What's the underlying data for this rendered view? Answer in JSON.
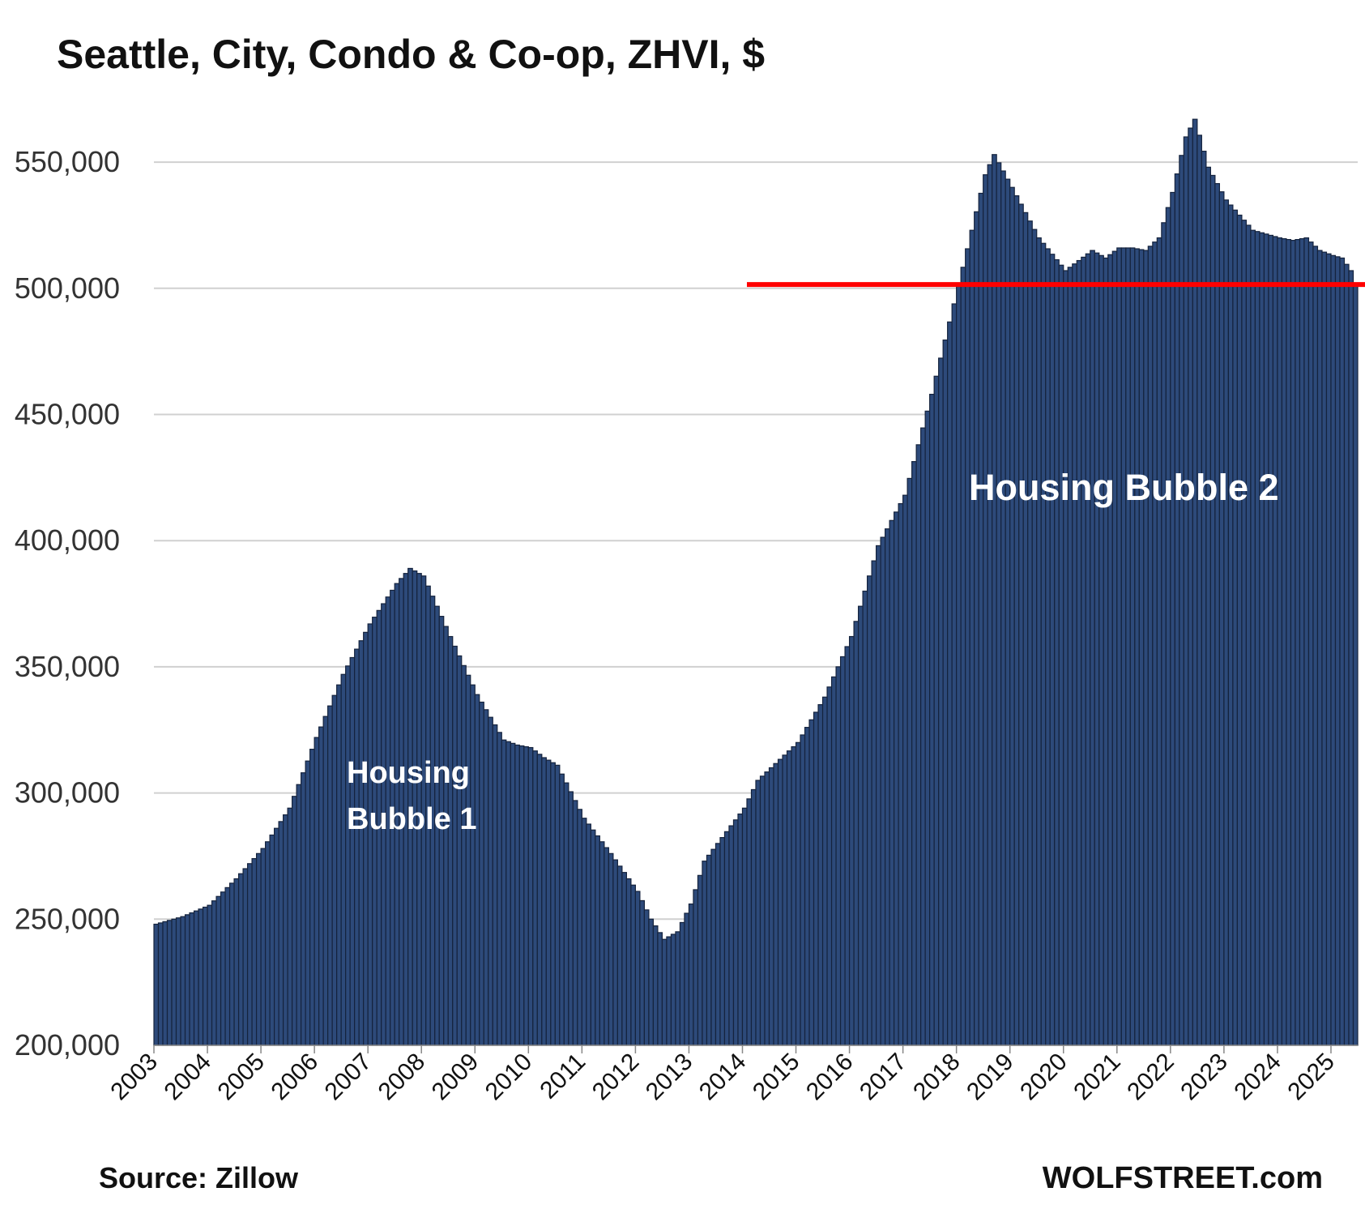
{
  "title": "Seattle, City, Condo & Co-op, ZHVI, $",
  "source": "Source: Zillow",
  "brand": "WOLFSTREET.com",
  "colors": {
    "bars": "#2d4a7a",
    "bar_edge": "#15233d",
    "reference_line": "#ff0000",
    "grid": "#d0d0d0"
  },
  "chart_data": {
    "type": "bar",
    "frequency": "monthly",
    "start": "2003-01",
    "ylim": [
      200000,
      550000
    ],
    "yticks": [
      "200,000",
      "250,000",
      "300,000",
      "350,000",
      "400,000",
      "450,000",
      "500,000",
      "550,000"
    ],
    "ytick_values": [
      200000,
      250000,
      300000,
      350000,
      400000,
      450000,
      500000,
      550000
    ],
    "xtick_labels": [
      "2003",
      "2004",
      "2005",
      "2006",
      "2007",
      "2008",
      "2009",
      "2010",
      "2011",
      "2012",
      "2013",
      "2014",
      "2015",
      "2016",
      "2017",
      "2018",
      "2019",
      "2020",
      "2021",
      "2022",
      "2023",
      "2024",
      "2025"
    ],
    "reference_line": {
      "value": 501500,
      "from": "2014-02"
    },
    "annotations": [
      {
        "lines": [
          "Housing",
          "Bubble 1"
        ]
      },
      {
        "lines": [
          "Housing Bubble 2"
        ]
      }
    ],
    "anchors": [
      [
        "2003-01",
        248000
      ],
      [
        "2003-07",
        251000
      ],
      [
        "2004-01",
        255500
      ],
      [
        "2004-07",
        266000
      ],
      [
        "2005-01",
        278000
      ],
      [
        "2005-07",
        294000
      ],
      [
        "2006-01",
        322000
      ],
      [
        "2006-07",
        347000
      ],
      [
        "2007-01",
        367000
      ],
      [
        "2007-07",
        383000
      ],
      [
        "2007-10",
        389000
      ],
      [
        "2008-01",
        386000
      ],
      [
        "2008-07",
        362000
      ],
      [
        "2009-01",
        339000
      ],
      [
        "2009-07",
        321000
      ],
      [
        "2009-10",
        319000
      ],
      [
        "2010-01",
        318000
      ],
      [
        "2010-04",
        314000
      ],
      [
        "2010-07",
        311000
      ],
      [
        "2011-01",
        290000
      ],
      [
        "2011-07",
        276000
      ],
      [
        "2012-01",
        261000
      ],
      [
        "2012-04",
        250000
      ],
      [
        "2012-07",
        242000
      ],
      [
        "2012-10",
        245000
      ],
      [
        "2013-01",
        256000
      ],
      [
        "2013-04",
        273000
      ],
      [
        "2013-07",
        280000
      ],
      [
        "2014-01",
        294000
      ],
      [
        "2014-04",
        305000
      ],
      [
        "2014-07",
        310000
      ],
      [
        "2015-01",
        320000
      ],
      [
        "2015-07",
        338000
      ],
      [
        "2016-01",
        362000
      ],
      [
        "2016-07",
        398000
      ],
      [
        "2017-01",
        418000
      ],
      [
        "2017-07",
        458000
      ],
      [
        "2018-01",
        501000
      ],
      [
        "2018-07",
        545000
      ],
      [
        "2018-09",
        553000
      ],
      [
        "2019-01",
        540000
      ],
      [
        "2019-07",
        520000
      ],
      [
        "2020-01",
        507000
      ],
      [
        "2020-04",
        511000
      ],
      [
        "2020-07",
        515000
      ],
      [
        "2020-10",
        512000
      ],
      [
        "2021-01",
        516000
      ],
      [
        "2021-04",
        516000
      ],
      [
        "2021-07",
        515000
      ],
      [
        "2021-10",
        520000
      ],
      [
        "2022-01",
        538000
      ],
      [
        "2022-04",
        560000
      ],
      [
        "2022-06",
        567000
      ],
      [
        "2022-09",
        548000
      ],
      [
        "2023-01",
        535000
      ],
      [
        "2023-07",
        523000
      ],
      [
        "2024-01",
        520000
      ],
      [
        "2024-04",
        519000
      ],
      [
        "2024-07",
        520000
      ],
      [
        "2024-10",
        515000
      ],
      [
        "2025-01",
        513000
      ],
      [
        "2025-03",
        512000
      ],
      [
        "2025-05",
        507000
      ],
      [
        "2025-06",
        501000
      ]
    ]
  }
}
